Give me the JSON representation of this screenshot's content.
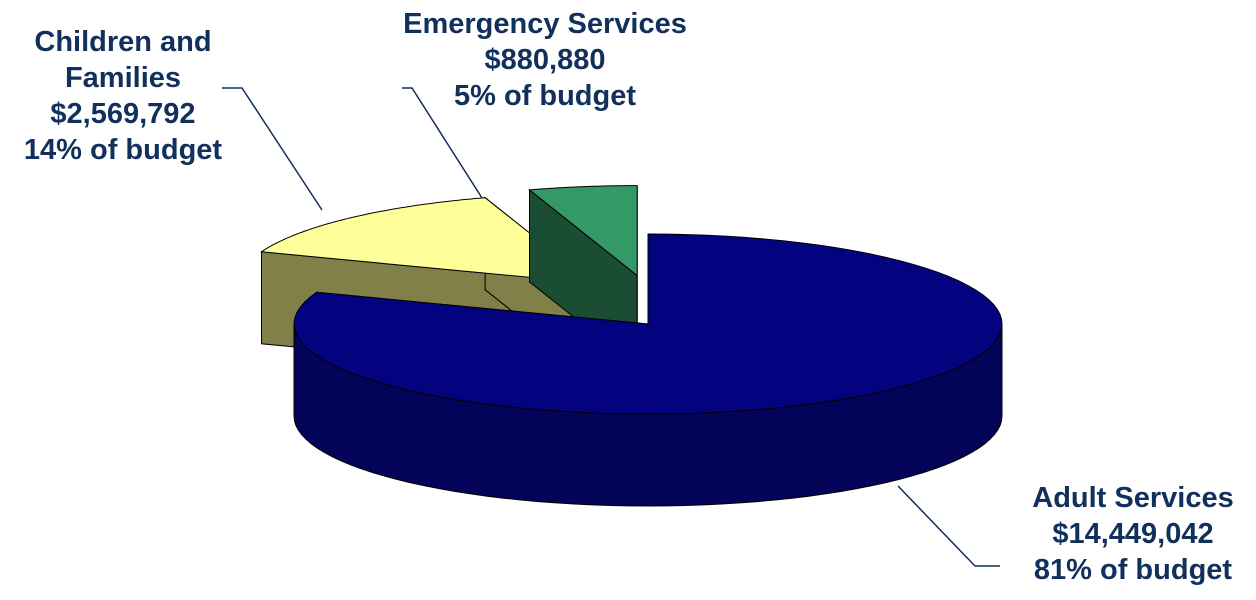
{
  "chart_data": {
    "type": "pie",
    "title": "",
    "slices": [
      {
        "category": "Adult Services",
        "amount": "$14,449,042",
        "percent_text": "81% of budget",
        "value": 14449042,
        "percent": 81,
        "top_color": "#030380",
        "side_color": "#03035a"
      },
      {
        "category": "Children and Families",
        "category_lines": [
          "Children and",
          "Families"
        ],
        "amount": "$2,569,792",
        "percent_text": "14% of budget",
        "value": 2569792,
        "percent": 14,
        "top_color": "#ffff99",
        "side_color": "#808048"
      },
      {
        "category": "Emergency Services",
        "amount": "$880,880",
        "percent_text": "5% of budget",
        "value": 880880,
        "percent": 5,
        "top_color": "#339966",
        "side_color": "#1b4d34"
      }
    ],
    "legend": "none",
    "style": "3d-exploded"
  }
}
